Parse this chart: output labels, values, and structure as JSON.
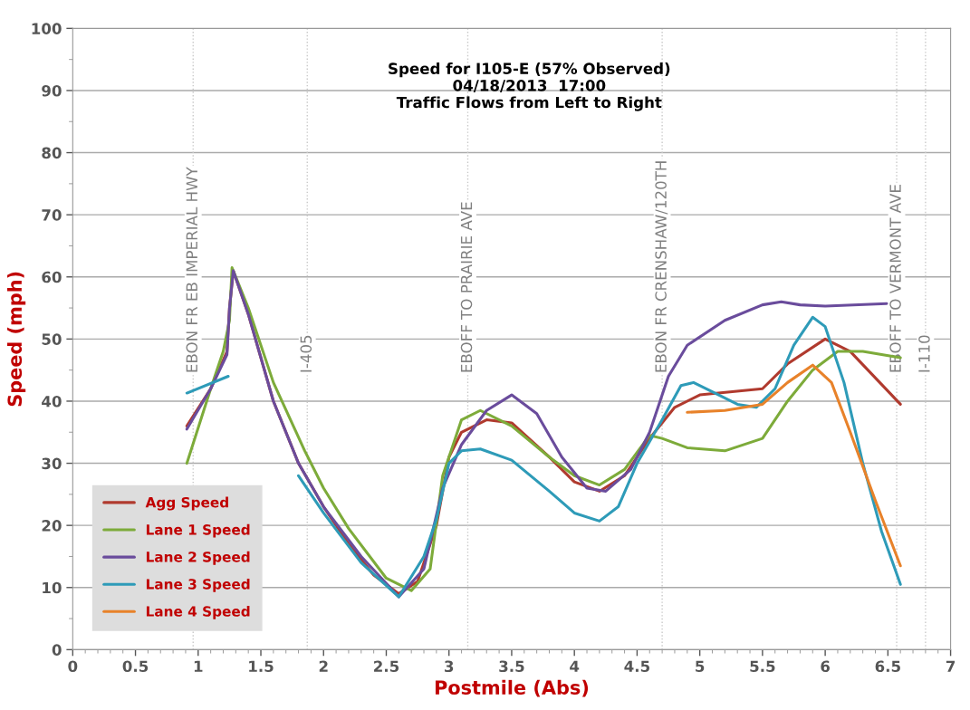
{
  "chart_data": {
    "type": "line",
    "title": "Speed for I105-E (57% Observed)\n04/18/2013  17:00\nTraffic Flows from Left to Right",
    "xlabel": "Postmile (Abs)",
    "ylabel": "Speed (mph)",
    "xlim": [
      0,
      7
    ],
    "xticks": [
      0,
      {
        "value": 0.5,
        "label": "0.5"
      },
      1,
      {
        "value": 1.5,
        "label": "1.5"
      },
      2,
      {
        "value": 2.5,
        "label": "2.5"
      },
      3,
      {
        "value": 3.5,
        "label": "3.5"
      },
      4,
      {
        "value": 4.5,
        "label": "4.5"
      },
      5,
      {
        "value": 5.5,
        "label": "5.5"
      },
      6,
      {
        "value": 6.5,
        "label": "6.5"
      },
      7
    ],
    "ylim": [
      0,
      100
    ],
    "yticks": [
      0,
      10,
      20,
      30,
      40,
      50,
      60,
      70,
      80,
      90,
      100
    ],
    "grid": "y",
    "legend": "bottom left",
    "marker": "none",
    "line_style": "solid",
    "ref_lines": [
      {
        "axis": "x",
        "value": 0.96,
        "label": "EBON FR EB IMPERIAL HWY",
        "color": "#c8c8c8",
        "line_style": "dotted"
      },
      {
        "axis": "x",
        "value": 1.87,
        "label": "I-405",
        "color": "#c8c8c8",
        "line_style": "dotted"
      },
      {
        "axis": "x",
        "value": 3.15,
        "label": "EBOFF TO PRAIRIE AVE",
        "color": "#c8c8c8",
        "line_style": "dotted"
      },
      {
        "axis": "x",
        "value": 4.7,
        "label": "EBON FR CRENSHAW/120TH",
        "color": "#c8c8c8",
        "line_style": "dotted"
      },
      {
        "axis": "x",
        "value": 6.57,
        "label": "EBOFF TO VERMONT AVE",
        "color": "#c8c8c8",
        "line_style": "dotted"
      },
      {
        "axis": "x",
        "value": 6.8,
        "label": "I-110",
        "color": "#c8c8c8",
        "line_style": "dotted"
      }
    ],
    "series": [
      {
        "name": "Agg Speed",
        "color": "#b03a2e",
        "x": [
          0.91,
          1.1,
          1.23,
          1.25,
          1.28,
          1.4,
          1.6,
          1.8,
          2.0,
          2.2,
          2.4,
          2.6,
          2.75,
          2.9,
          3.0,
          3.1,
          3.3,
          3.5,
          3.8,
          4.0,
          4.2,
          4.4,
          4.6,
          4.8,
          5.0,
          5.5,
          5.7,
          6.0,
          6.2,
          6.6
        ],
        "values": [
          36,
          42,
          48,
          55,
          61,
          54,
          40,
          30,
          23,
          17,
          12,
          9,
          11,
          20,
          31,
          35,
          37,
          36.5,
          31,
          27,
          25.5,
          28,
          34,
          39,
          41,
          42,
          46,
          50,
          48,
          39.5
        ]
      },
      {
        "name": "Lane 1 Speed",
        "color": "#7dab3a",
        "x": [
          0.91,
          1.1,
          1.2,
          1.25,
          1.27,
          1.4,
          1.6,
          1.85,
          2.0,
          2.2,
          2.5,
          2.7,
          2.85,
          2.95,
          3.1,
          3.25,
          3.5,
          3.8,
          4.0,
          4.2,
          4.4,
          4.6,
          4.7,
          4.9,
          5.2,
          5.5,
          5.7,
          5.9,
          6.1,
          6.3,
          6.6
        ],
        "values": [
          30,
          42,
          48,
          53,
          61.5,
          55,
          43,
          32,
          26,
          19.5,
          11.5,
          9.5,
          13,
          28,
          37,
          38.5,
          36,
          31,
          28,
          26.5,
          29,
          34.5,
          34,
          32.5,
          32,
          34,
          40,
          45,
          48,
          48,
          47
        ]
      },
      {
        "name": "Lane 2 Speed",
        "color": "#6a4c9c",
        "x": [
          0.91,
          1.1,
          1.23,
          1.25,
          1.28,
          1.4,
          1.6,
          1.8,
          2.0,
          2.3,
          2.6,
          2.8,
          2.95,
          3.1,
          3.3,
          3.5,
          3.7,
          3.9,
          4.1,
          4.25,
          4.45,
          4.6,
          4.75,
          4.9,
          5.2,
          5.5,
          5.65,
          5.8,
          6.0,
          6.49
        ],
        "values": [
          35.5,
          42,
          47.5,
          55,
          61,
          54,
          40,
          30,
          23,
          15,
          8.5,
          13,
          26,
          33,
          38.5,
          41,
          38,
          31,
          26,
          25.5,
          29,
          35,
          44,
          49,
          53,
          55.5,
          56,
          55.5,
          55.3,
          55.7
        ]
      },
      {
        "name": "Lane 3 Speed",
        "color": "#2e9bb8",
        "x": [
          0.91,
          1.24,
          1.5,
          1.8,
          2.0,
          2.3,
          2.6,
          2.8,
          2.9,
          3.0,
          3.1,
          3.25,
          3.5,
          3.8,
          4.0,
          4.2,
          4.35,
          4.5,
          4.7,
          4.85,
          4.95,
          5.1,
          5.3,
          5.45,
          5.6,
          5.75,
          5.9,
          6.0,
          6.15,
          6.3,
          6.45,
          6.6
        ],
        "values": [
          41.3,
          44,
          null,
          28,
          22,
          14,
          8.5,
          15,
          21,
          30,
          32,
          32.3,
          30.5,
          25.5,
          22,
          20.7,
          23,
          30,
          37,
          42.5,
          43,
          41.5,
          39.5,
          39,
          42,
          49,
          53.5,
          52,
          43,
          30,
          19,
          10.5
        ]
      },
      {
        "name": "Lane 4 Speed",
        "color": "#e8822a",
        "x": [
          4.9,
          5.2,
          5.5,
          5.7,
          5.9,
          6.05,
          6.2,
          6.4,
          6.6
        ],
        "values": [
          38.2,
          38.5,
          39.5,
          43,
          45.8,
          43,
          35,
          24,
          13.5
        ]
      }
    ]
  }
}
